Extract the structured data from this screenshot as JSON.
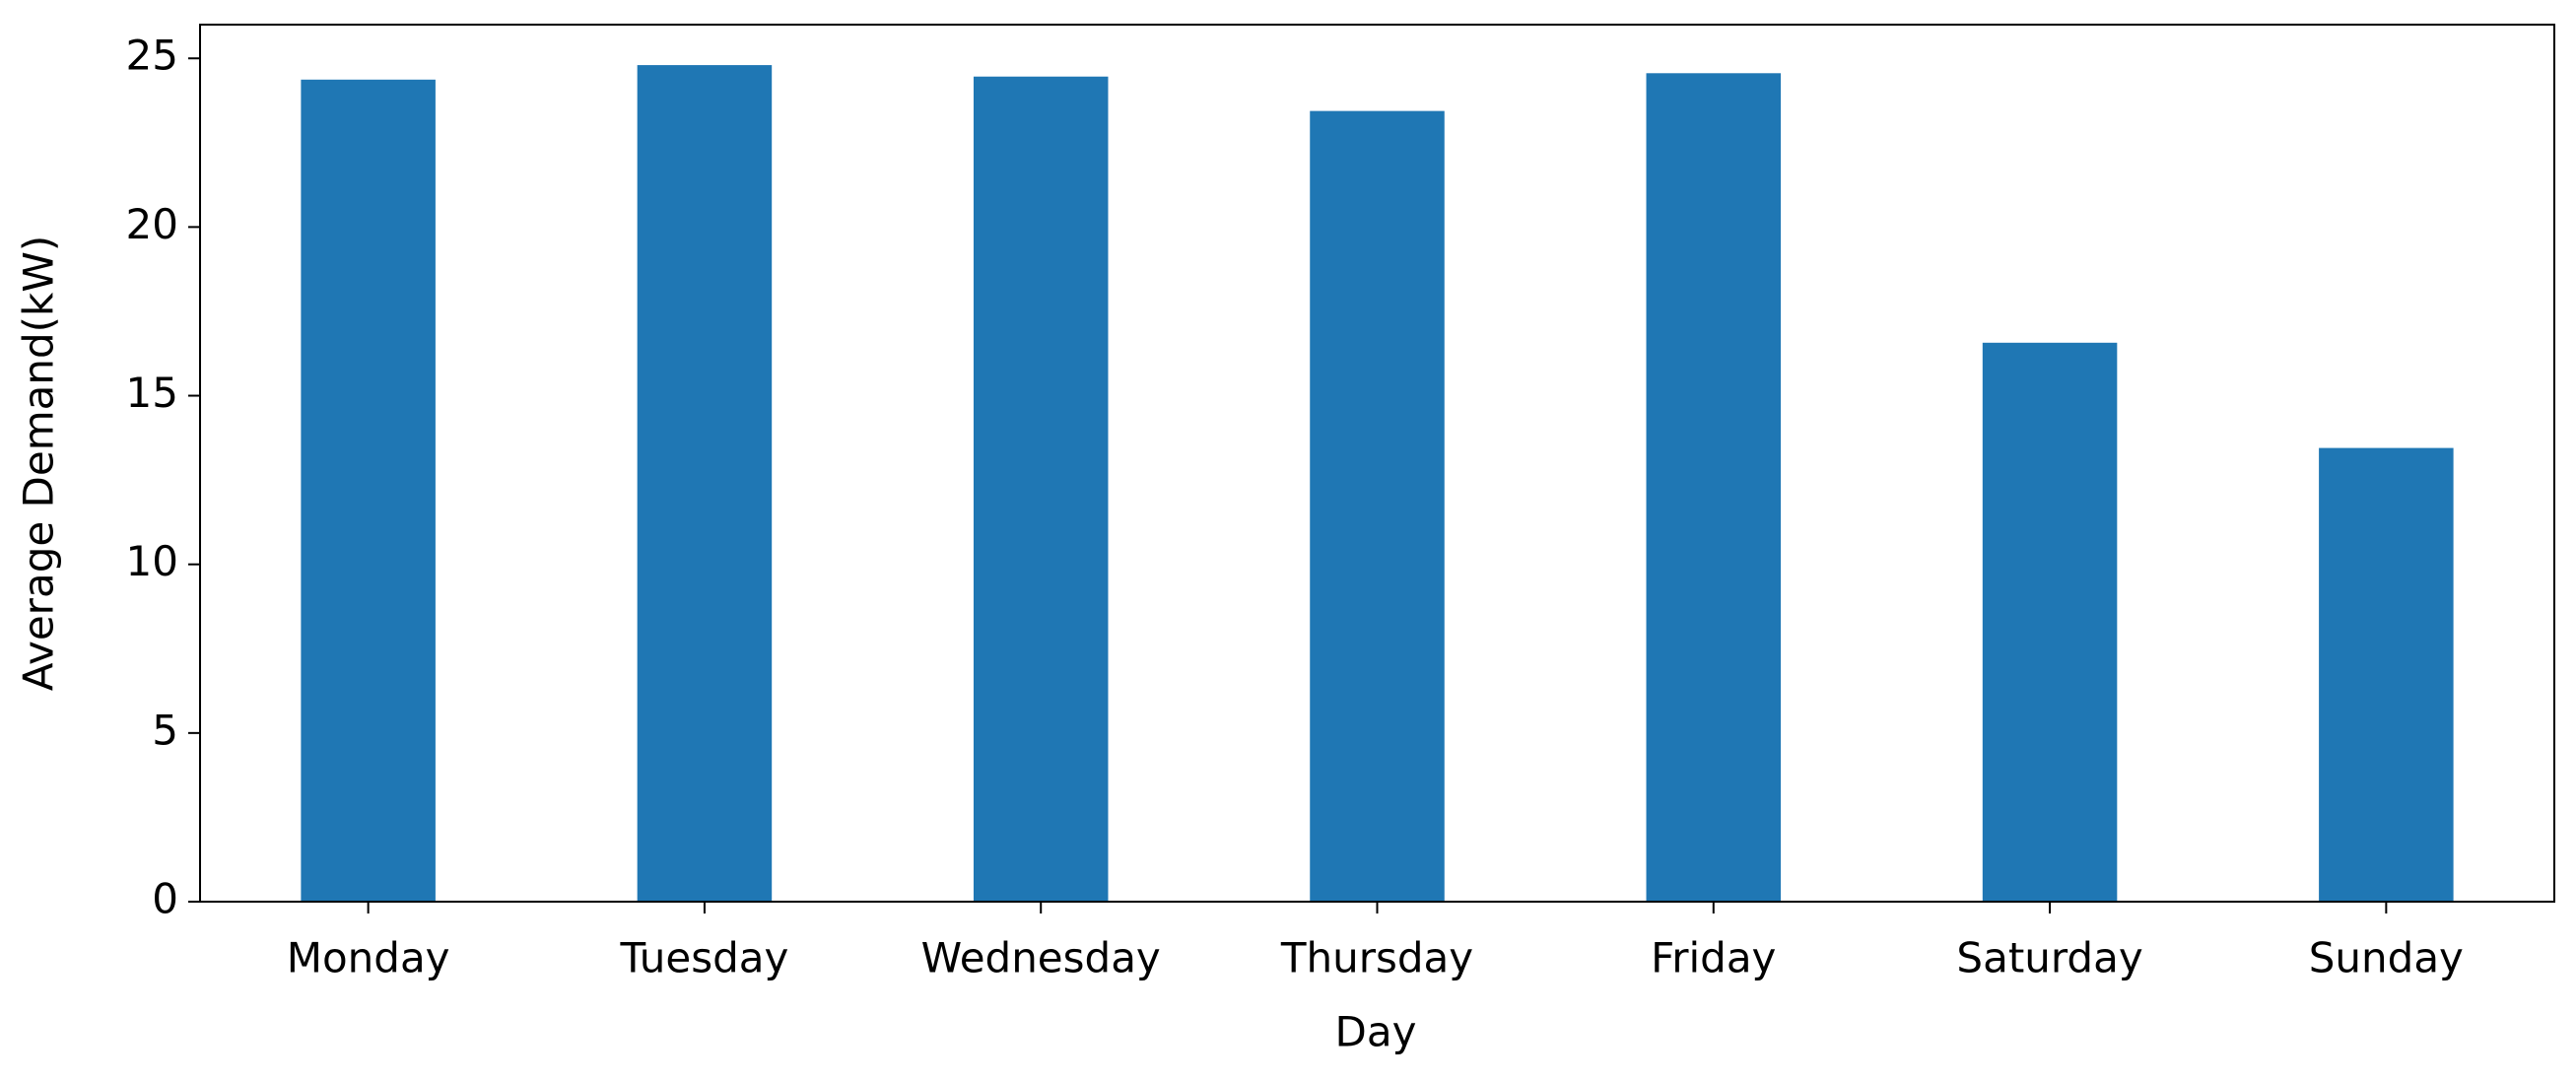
{
  "chart_data": {
    "type": "bar",
    "x_label": "Day",
    "y_label": "Average Demand(kW)",
    "categories": [
      "Monday",
      "Tuesday",
      "Wednesday",
      "Thursday",
      "Friday",
      "Saturday",
      "Sunday"
    ],
    "values": [
      24.37,
      24.8,
      24.46,
      23.44,
      24.56,
      16.57,
      13.45
    ],
    "color": "#1f77b4",
    "ylim": [
      0,
      26
    ],
    "yticks": [
      0,
      5,
      10,
      15,
      20,
      25
    ],
    "grid": false
  }
}
